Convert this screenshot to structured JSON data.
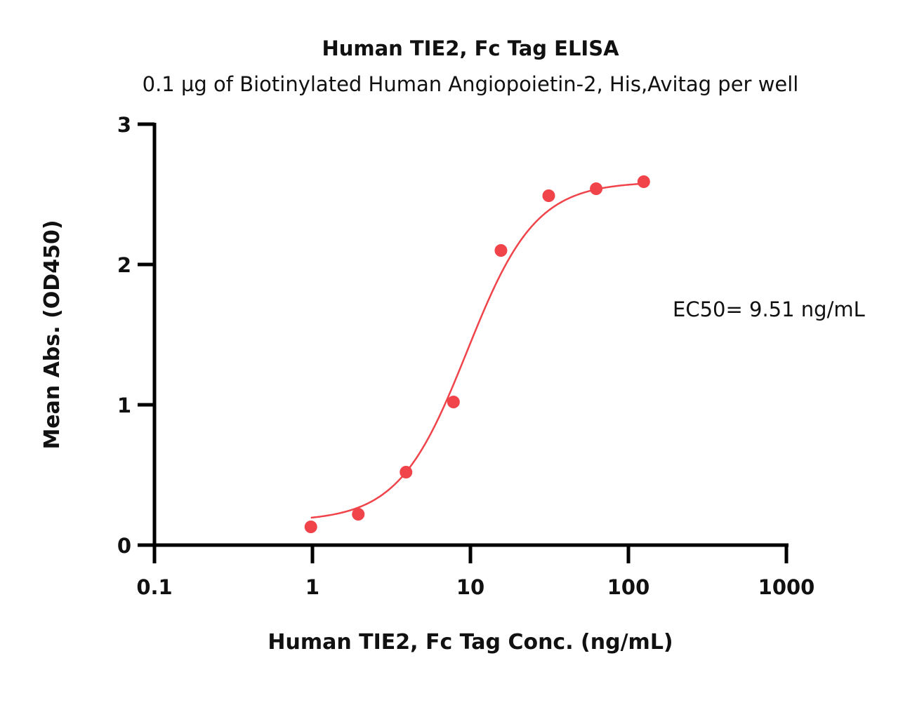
{
  "chart_data": {
    "type": "scatter",
    "title": "Human TIE2, Fc Tag ELISA",
    "subtitle": "0.1 µg of Biotinylated Human Angiopoietin-2, His,Avitag per well",
    "xlabel": "Human TIE2, Fc Tag Conc. (ng/mL)",
    "ylabel": "Mean Abs. (OD450)",
    "xscale": "log",
    "xlim": [
      0.1,
      1000
    ],
    "ylim": [
      0,
      3
    ],
    "x_ticks": [
      "0.1",
      "1",
      "10",
      "100",
      "1000"
    ],
    "y_ticks": [
      "0",
      "1",
      "2",
      "3"
    ],
    "grid": false,
    "series": [
      {
        "color": "#f0434a",
        "points": [
          {
            "x": 0.977,
            "y": 0.13
          },
          {
            "x": 1.95,
            "y": 0.22
          },
          {
            "x": 3.91,
            "y": 0.52
          },
          {
            "x": 7.81,
            "y": 1.02
          },
          {
            "x": 15.6,
            "y": 2.1
          },
          {
            "x": 31.3,
            "y": 2.49
          },
          {
            "x": 62.5,
            "y": 2.54
          },
          {
            "x": 125,
            "y": 2.59
          }
        ],
        "fit": {
          "model": "4PL",
          "bottom": 0.17,
          "top": 2.59,
          "ec50": 9.51,
          "hill": 2.0
        }
      }
    ],
    "annotations": [
      "EC50= 9.51 ng/mL"
    ]
  }
}
